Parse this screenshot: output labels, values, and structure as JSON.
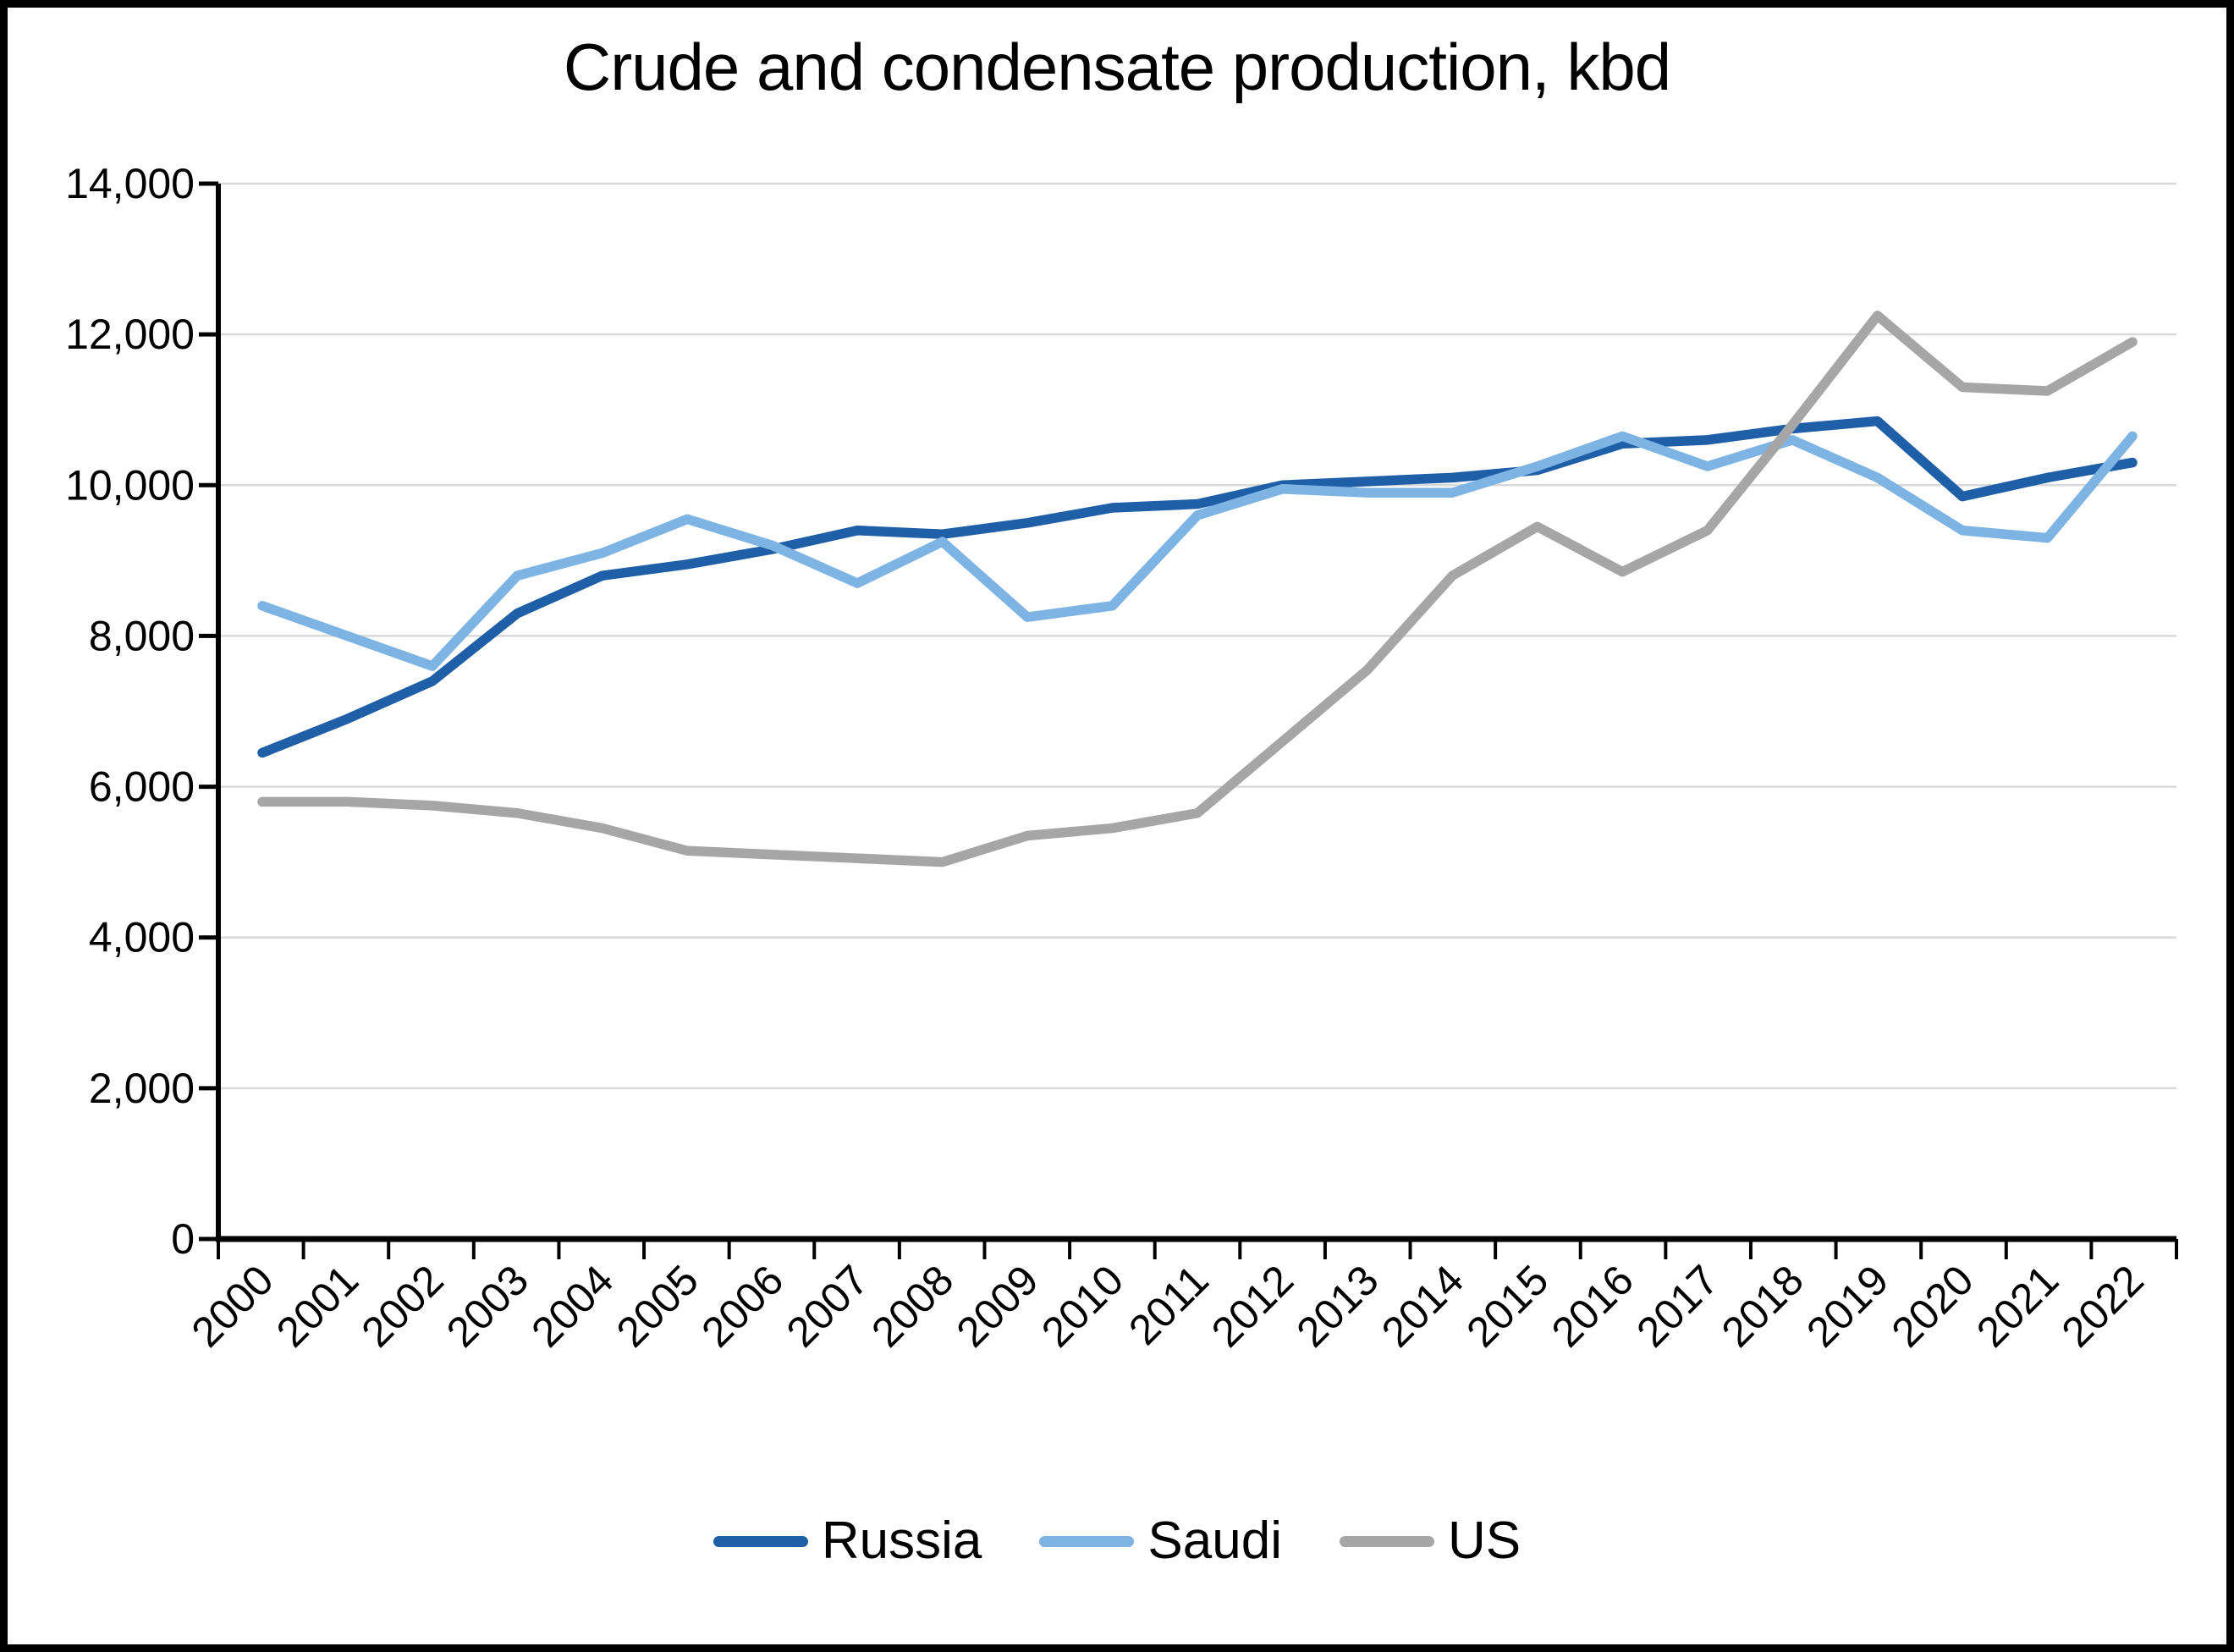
{
  "title": "Crude and condensate production, kbd",
  "chart_data": {
    "type": "line",
    "x": [
      "2000",
      "2001",
      "2002",
      "2003",
      "2004",
      "2005",
      "2006",
      "2007",
      "2008",
      "2009",
      "2010",
      "2011",
      "2012",
      "2013",
      "2014",
      "2015",
      "2016",
      "2017",
      "2018",
      "2019",
      "2020",
      "2021",
      "2022"
    ],
    "series": [
      {
        "name": "Russia",
        "color": "#1F5FA8",
        "values": [
          6450,
          6900,
          7400,
          8300,
          8800,
          8950,
          9150,
          9400,
          9350,
          9500,
          9700,
          9750,
          10000,
          10050,
          10100,
          10200,
          10550,
          10600,
          10750,
          10850,
          9850,
          10100,
          10300
        ]
      },
      {
        "name": "Saudi",
        "color": "#7DB4E4",
        "values": [
          8400,
          8000,
          7600,
          8800,
          9100,
          9550,
          9200,
          8700,
          9250,
          8250,
          8400,
          9600,
          9950,
          9900,
          9900,
          10250,
          10650,
          10250,
          10600,
          10100,
          9400,
          9300,
          10650
        ]
      },
      {
        "name": "US",
        "color": "#A6A6A6",
        "values": [
          5800,
          5800,
          5750,
          5650,
          5450,
          5150,
          5100,
          5050,
          5000,
          5350,
          5450,
          5650,
          6600,
          7550,
          8800,
          9450,
          8850,
          9400,
          10800,
          12250,
          11300,
          11250,
          11900
        ]
      }
    ],
    "ylim": [
      0,
      14000
    ],
    "ytick_interval": 2000,
    "ytick_labels": [
      "0",
      "2,000",
      "4,000",
      "6,000",
      "8,000",
      "10,000",
      "12,000",
      "14,000"
    ],
    "xlabel": "",
    "ylabel": "",
    "grid": true,
    "legend_position": "bottom",
    "axis_color": "#000000",
    "gridline_color": "#D9D9D9",
    "background_color": "#FFFFFF"
  }
}
